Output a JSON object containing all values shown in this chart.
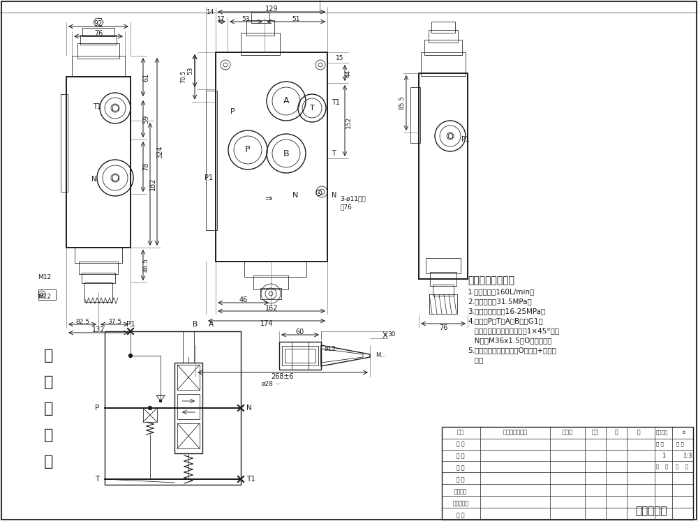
{
  "bg_color": "#ffffff",
  "line_color": "#1a1a1a",
  "tech_title": "技术要求和参数：",
  "tech_items": [
    "1.公称流量：160L/min；",
    "2.公称压力：31.5MPa；",
    "3.主安全阀压力：16-25MPa；",
    "4.油口：P、T、A、B口为G1；",
    "   均为平面密封，螺纹孔口倒1×45°角；",
    "   N口为M36x1.5，O型圈密封；",
    "5.控制方式：手动控制，O型阀杆+弹簧复",
    "   位。"
  ],
  "final_label": "一联多路阀",
  "chinese_chars": [
    "液",
    "压",
    "原",
    "理",
    "图"
  ]
}
